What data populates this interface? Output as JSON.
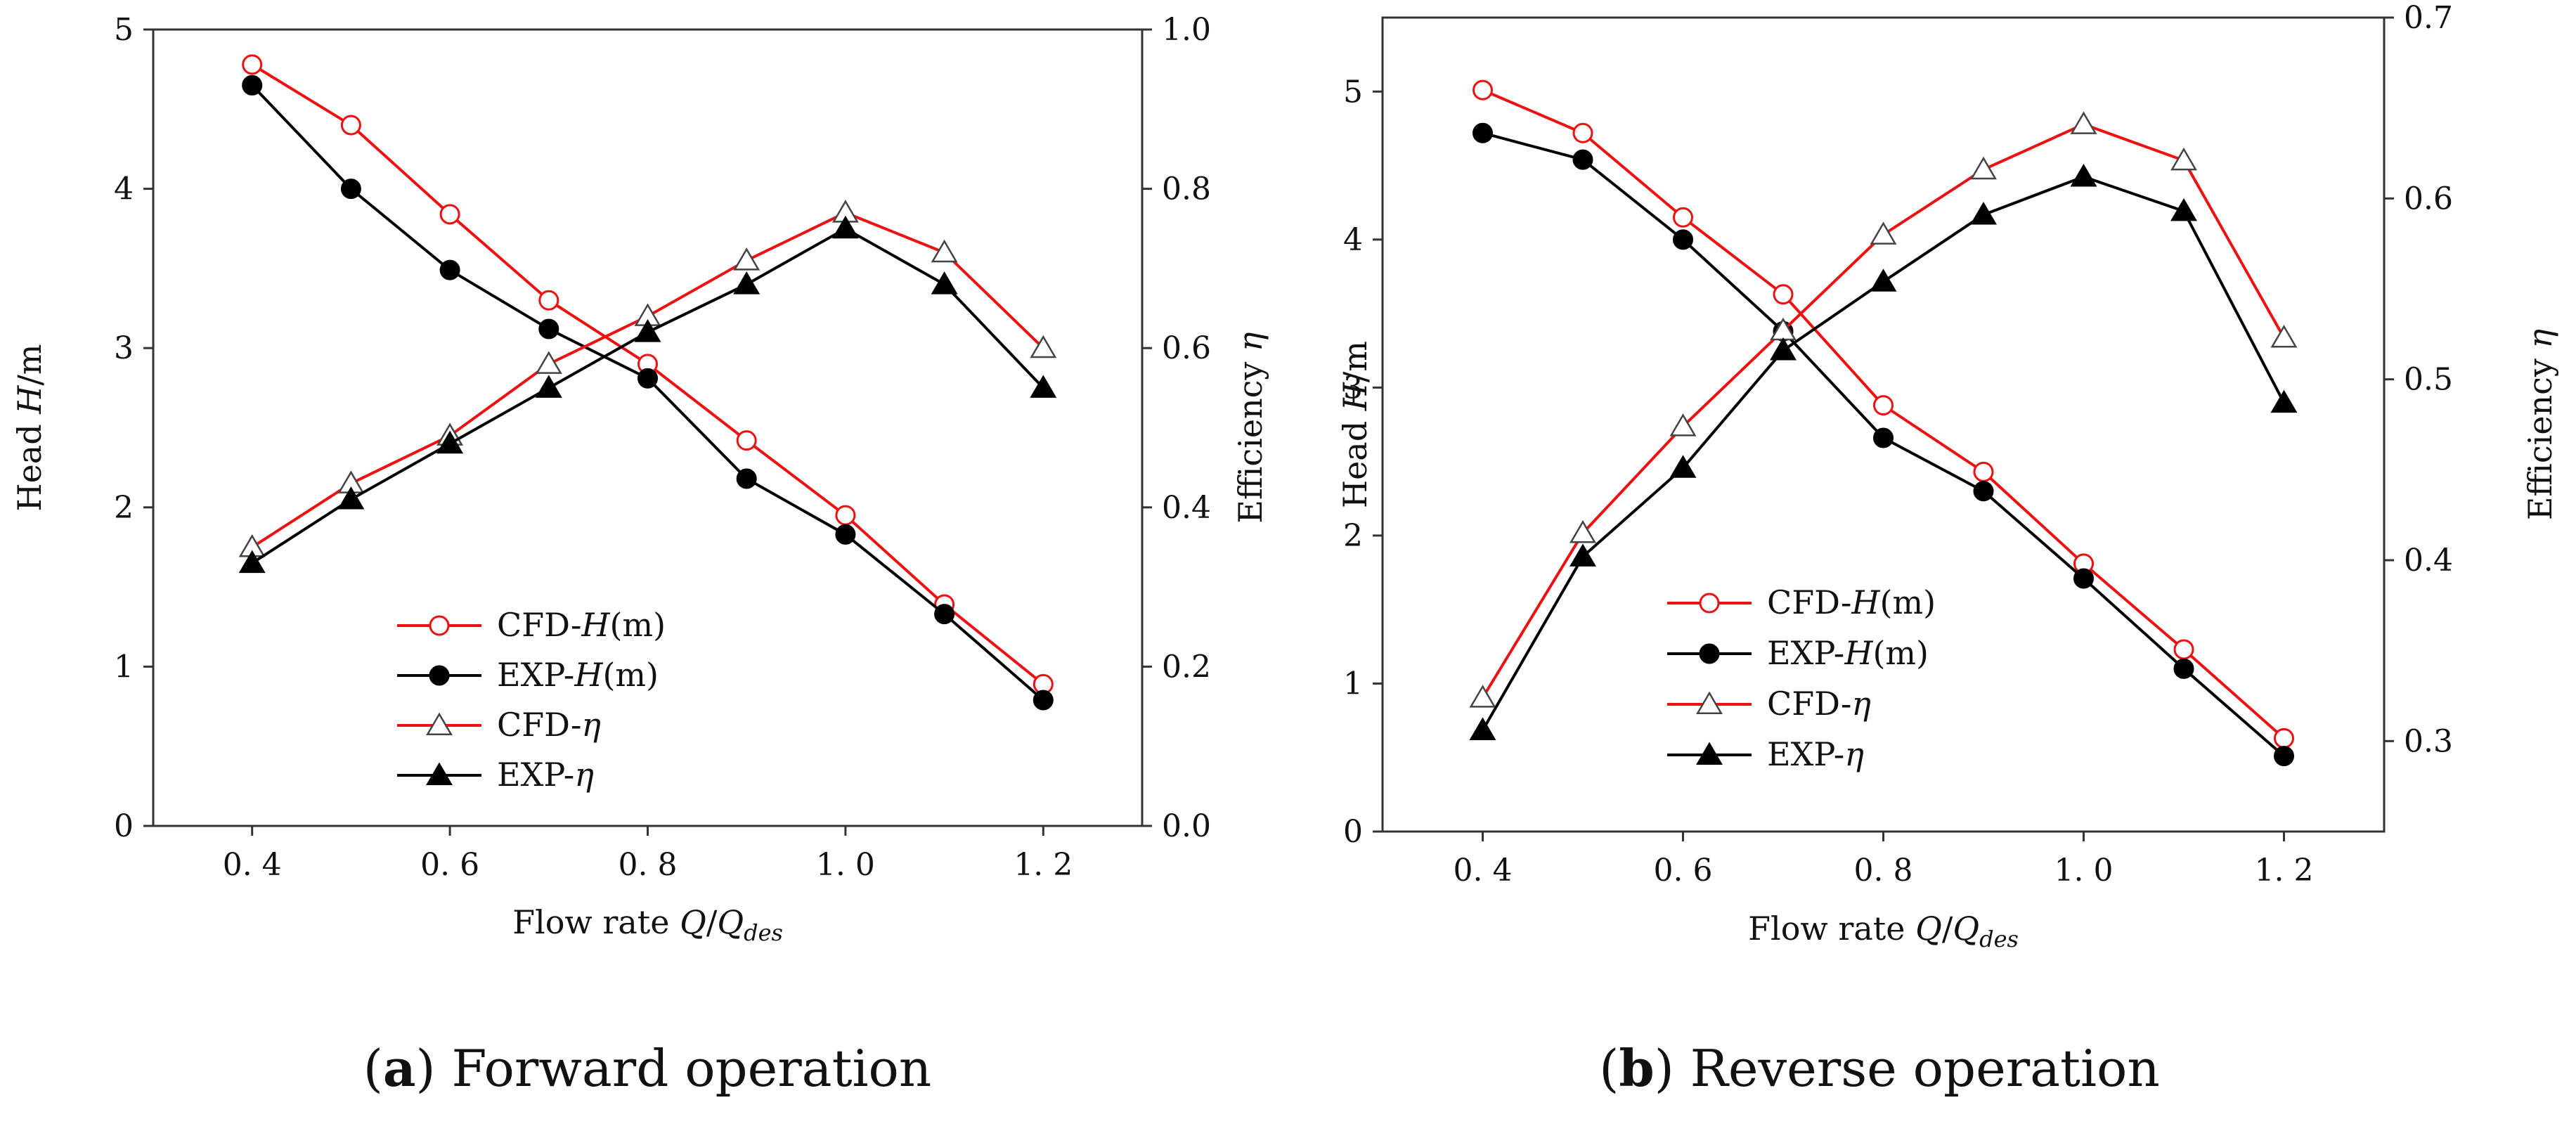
{
  "colors": {
    "cfd": "#ee1111",
    "exp": "#000000"
  },
  "chart_data": [
    {
      "type": "line",
      "id": "a",
      "caption_letter": "a",
      "caption_text": "Forward operation",
      "xlabel": "Flow rate",
      "xlabel_math": {
        "main": "Q",
        "slash": "/",
        "den": "Q",
        "sub": "des"
      },
      "ylabel_left": {
        "pre": "Head ",
        "italic": "H",
        "post": "/m"
      },
      "ylabel_right": {
        "pre": "Efficiency ",
        "italic": "η",
        "post": ""
      },
      "xlim": [
        0.3,
        1.3
      ],
      "ylim_left": [
        0,
        5
      ],
      "ylim_right": [
        0.0,
        1.0
      ],
      "xticks": [
        0.4,
        0.6,
        0.8,
        1.0,
        1.2
      ],
      "xtick_labels": [
        "0. 4",
        "0. 6",
        "0. 8",
        "1. 0",
        "1. 2"
      ],
      "yticks_left": [
        0,
        1,
        2,
        3,
        4,
        5
      ],
      "ytick_labels_left": [
        "0",
        "1",
        "2",
        "3",
        "4",
        "5"
      ],
      "yticks_right": [
        0.0,
        0.2,
        0.4,
        0.6,
        0.8,
        1.0
      ],
      "ytick_labels_right": [
        "0.0",
        "0.2",
        "0.4",
        "0.6",
        "0.8",
        "1.0"
      ],
      "grid": false,
      "legend_position": "bottom-center",
      "x": [
        0.4,
        0.5,
        0.6,
        0.7,
        0.8,
        0.9,
        1.0,
        1.1,
        1.2
      ],
      "series": [
        {
          "name": "CFD-H(m)",
          "label_pre": "CFD-",
          "label_italic": "H",
          "label_post": "(m)",
          "axis": "left",
          "marker": "circle-open",
          "color": "#ee1111",
          "values": [
            4.78,
            4.4,
            3.84,
            3.3,
            2.9,
            2.42,
            1.95,
            1.39,
            0.89
          ]
        },
        {
          "name": "EXP-H(m)",
          "label_pre": "EXP-",
          "label_italic": "H",
          "label_post": "(m)",
          "axis": "left",
          "marker": "circle-filled",
          "color": "#000000",
          "values": [
            4.65,
            4.0,
            3.49,
            3.12,
            2.81,
            2.18,
            1.83,
            1.33,
            0.79
          ]
        },
        {
          "name": "CFD-η",
          "label_pre": "CFD-",
          "label_italic": "η",
          "label_post": "",
          "axis": "right",
          "marker": "triangle-open",
          "color": "#ee1111",
          "values": [
            0.35,
            0.43,
            0.49,
            0.58,
            0.64,
            0.71,
            0.77,
            0.72,
            0.6
          ]
        },
        {
          "name": "EXP-η",
          "label_pre": "EXP-",
          "label_italic": "η",
          "label_post": "",
          "axis": "right",
          "marker": "triangle-filled",
          "color": "#000000",
          "values": [
            0.33,
            0.41,
            0.48,
            0.55,
            0.62,
            0.68,
            0.75,
            0.68,
            0.55
          ]
        }
      ]
    },
    {
      "type": "line",
      "id": "b",
      "caption_letter": "b",
      "caption_text": "Reverse operation",
      "xlabel": "Flow rate",
      "xlabel_math": {
        "main": "Q",
        "slash": "/",
        "den": "Q",
        "sub": "des"
      },
      "ylabel_left": {
        "pre": "Head ",
        "italic": "H",
        "post": "/m"
      },
      "ylabel_right": {
        "pre": "Efficiency ",
        "italic": "η",
        "post": ""
      },
      "xlim": [
        0.3,
        1.3
      ],
      "ylim_left": [
        0,
        5.5
      ],
      "ylim_right": [
        0.25,
        0.7
      ],
      "xticks": [
        0.4,
        0.6,
        0.8,
        1.0,
        1.2
      ],
      "xtick_labels": [
        "0. 4",
        "0. 6",
        "0. 8",
        "1. 0",
        "1. 2"
      ],
      "yticks_left": [
        0,
        1,
        2,
        3,
        4,
        5
      ],
      "ytick_labels_left": [
        "0",
        "1",
        "2",
        "3",
        "4",
        "5"
      ],
      "yticks_right": [
        0.3,
        0.4,
        0.5,
        0.6,
        0.7
      ],
      "ytick_labels_right": [
        "0.3",
        "0.4",
        "0.5",
        "0.6",
        "0.7"
      ],
      "grid": false,
      "legend_position": "bottom-center",
      "x": [
        0.4,
        0.5,
        0.6,
        0.7,
        0.8,
        0.9,
        1.0,
        1.1,
        1.2
      ],
      "series": [
        {
          "name": "CFD-H(m)",
          "label_pre": "CFD-",
          "label_italic": "H",
          "label_post": "(m)",
          "axis": "left",
          "marker": "circle-open",
          "color": "#ee1111",
          "values": [
            5.01,
            4.72,
            4.15,
            3.63,
            2.88,
            2.43,
            1.81,
            1.23,
            0.63
          ]
        },
        {
          "name": "EXP-H(m)",
          "label_pre": "EXP-",
          "label_italic": "H",
          "label_post": "(m)",
          "axis": "left",
          "marker": "circle-filled",
          "color": "#000000",
          "values": [
            4.72,
            4.54,
            4.0,
            3.38,
            2.66,
            2.3,
            1.71,
            1.1,
            0.51
          ]
        },
        {
          "name": "CFD-η",
          "label_pre": "CFD-",
          "label_italic": "η",
          "label_post": "",
          "axis": "right",
          "marker": "triangle-open",
          "color": "#ee1111",
          "values": [
            0.324,
            0.415,
            0.474,
            0.527,
            0.58,
            0.616,
            0.641,
            0.621,
            0.523
          ]
        },
        {
          "name": "EXP-η",
          "label_pre": "EXP-",
          "label_italic": "η",
          "label_post": "",
          "axis": "right",
          "marker": "triangle-filled",
          "color": "#000000",
          "values": [
            0.306,
            0.402,
            0.451,
            0.516,
            0.554,
            0.591,
            0.612,
            0.593,
            0.487
          ]
        }
      ]
    }
  ]
}
